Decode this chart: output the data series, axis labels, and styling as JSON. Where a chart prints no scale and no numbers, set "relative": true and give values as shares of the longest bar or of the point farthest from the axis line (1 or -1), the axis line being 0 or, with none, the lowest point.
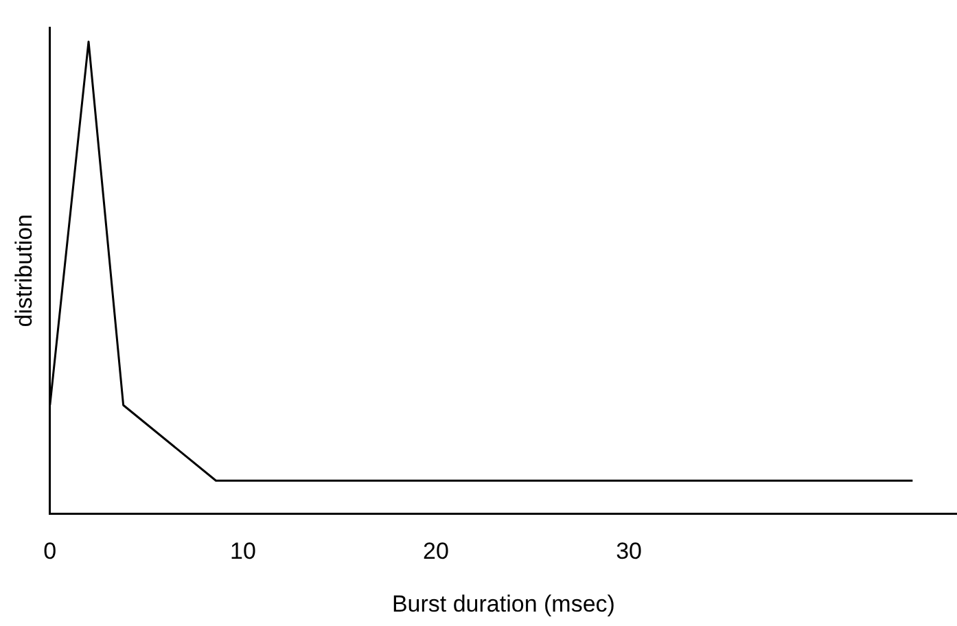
{
  "chart_data": {
    "type": "line",
    "xlabel": "Burst duration (msec)",
    "ylabel": "distribution",
    "relative": true,
    "xlim": [
      0,
      47
    ],
    "xticks": [
      0,
      10,
      20,
      30
    ],
    "grid": false,
    "legend": false,
    "marker": "none",
    "line_style": "solid",
    "x": [
      0,
      2,
      3.8,
      8.6,
      44.7
    ],
    "series": [
      {
        "color": "#000000",
        "values": [
          0.23,
          1,
          0.23,
          0.07,
          0.07
        ]
      }
    ]
  }
}
